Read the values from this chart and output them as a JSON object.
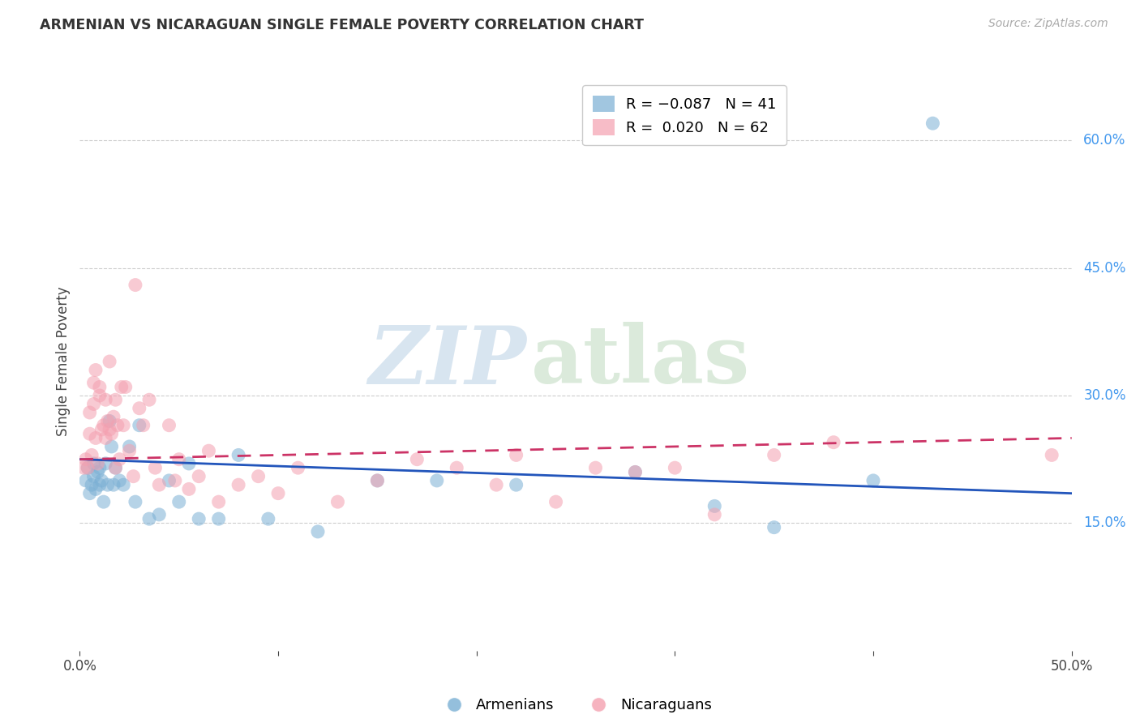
{
  "title": "ARMENIAN VS NICARAGUAN SINGLE FEMALE POVERTY CORRELATION CHART",
  "source": "Source: ZipAtlas.com",
  "ylabel_label": "Single Female Poverty",
  "xlim": [
    0.0,
    0.5
  ],
  "ylim": [
    0.0,
    0.68
  ],
  "xticks": [
    0.0,
    0.1,
    0.2,
    0.3,
    0.4,
    0.5
  ],
  "xticklabels": [
    "0.0%",
    "",
    "",
    "",
    "",
    "50.0%"
  ],
  "yticks_right": [
    0.15,
    0.3,
    0.45,
    0.6
  ],
  "ytick_labels_right": [
    "15.0%",
    "30.0%",
    "45.0%",
    "60.0%"
  ],
  "legend_r_armenian": "R = -0.087",
  "legend_n_armenian": "N = 41",
  "legend_r_nicaraguan": "R =  0.020",
  "legend_n_nicaraguan": "N = 62",
  "armenian_color": "#7aafd4",
  "nicaraguan_color": "#f4a0b0",
  "trendline_armenian_color": "#2255bb",
  "trendline_nicaraguan_color": "#cc3366",
  "background_color": "#ffffff",
  "grid_color": "#cccccc",
  "armenians_x": [
    0.003,
    0.004,
    0.005,
    0.006,
    0.007,
    0.007,
    0.008,
    0.009,
    0.01,
    0.01,
    0.011,
    0.012,
    0.013,
    0.014,
    0.015,
    0.016,
    0.017,
    0.018,
    0.02,
    0.022,
    0.025,
    0.028,
    0.03,
    0.035,
    0.04,
    0.045,
    0.05,
    0.055,
    0.06,
    0.07,
    0.08,
    0.095,
    0.12,
    0.15,
    0.18,
    0.22,
    0.28,
    0.32,
    0.35,
    0.4,
    0.43
  ],
  "armenians_y": [
    0.2,
    0.215,
    0.185,
    0.195,
    0.22,
    0.205,
    0.19,
    0.21,
    0.215,
    0.195,
    0.2,
    0.175,
    0.22,
    0.195,
    0.27,
    0.24,
    0.195,
    0.215,
    0.2,
    0.195,
    0.24,
    0.175,
    0.265,
    0.155,
    0.16,
    0.2,
    0.175,
    0.22,
    0.155,
    0.155,
    0.23,
    0.155,
    0.14,
    0.2,
    0.2,
    0.195,
    0.21,
    0.17,
    0.145,
    0.2,
    0.62
  ],
  "nicaraguans_x": [
    0.002,
    0.003,
    0.004,
    0.005,
    0.005,
    0.006,
    0.007,
    0.007,
    0.008,
    0.008,
    0.009,
    0.01,
    0.01,
    0.011,
    0.012,
    0.013,
    0.013,
    0.014,
    0.015,
    0.015,
    0.016,
    0.017,
    0.018,
    0.018,
    0.019,
    0.02,
    0.021,
    0.022,
    0.023,
    0.025,
    0.027,
    0.028,
    0.03,
    0.032,
    0.035,
    0.038,
    0.04,
    0.045,
    0.048,
    0.05,
    0.055,
    0.06,
    0.065,
    0.07,
    0.08,
    0.09,
    0.1,
    0.11,
    0.13,
    0.15,
    0.17,
    0.19,
    0.21,
    0.22,
    0.24,
    0.26,
    0.28,
    0.3,
    0.32,
    0.35,
    0.38,
    0.49
  ],
  "nicaraguans_y": [
    0.215,
    0.225,
    0.215,
    0.28,
    0.255,
    0.23,
    0.315,
    0.29,
    0.25,
    0.33,
    0.22,
    0.31,
    0.3,
    0.26,
    0.265,
    0.295,
    0.25,
    0.27,
    0.26,
    0.34,
    0.255,
    0.275,
    0.215,
    0.295,
    0.265,
    0.225,
    0.31,
    0.265,
    0.31,
    0.235,
    0.205,
    0.43,
    0.285,
    0.265,
    0.295,
    0.215,
    0.195,
    0.265,
    0.2,
    0.225,
    0.19,
    0.205,
    0.235,
    0.175,
    0.195,
    0.205,
    0.185,
    0.215,
    0.175,
    0.2,
    0.225,
    0.215,
    0.195,
    0.23,
    0.175,
    0.215,
    0.21,
    0.215,
    0.16,
    0.23,
    0.245,
    0.23
  ],
  "trendline_arm_x0": 0.0,
  "trendline_arm_x1": 0.5,
  "trendline_arm_y0": 0.225,
  "trendline_arm_y1": 0.185,
  "trendline_nic_x0": 0.0,
  "trendline_nic_x1": 0.5,
  "trendline_nic_y0": 0.225,
  "trendline_nic_y1": 0.25
}
